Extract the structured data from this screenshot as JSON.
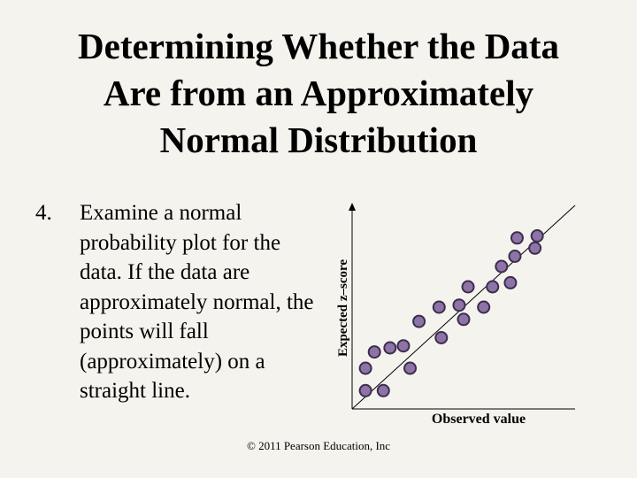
{
  "slide": {
    "title_lines": [
      "Determining Whether the Data",
      "Are from an Approximately",
      "Normal Distribution"
    ],
    "item_number": "4.",
    "item_text": "Examine a normal probability plot for the data. If the data are approximately normal, the points will fall (approximately) on a straight line.",
    "footer": "© 2011 Pearson Education, Inc"
  },
  "colors": {
    "background": "#f5f3ee",
    "point_fill": "#8e73a6",
    "point_stroke": "#3b2d4e"
  },
  "chart_data": {
    "type": "scatter",
    "title": "",
    "xlabel": "Observed value",
    "ylabel": "Expected z–score",
    "xlim": [
      0,
      100
    ],
    "ylim": [
      0,
      100
    ],
    "grid": false,
    "reference_line": {
      "from": [
        0,
        0
      ],
      "to": [
        100,
        100
      ]
    },
    "points": [
      {
        "x": 6,
        "y": 9
      },
      {
        "x": 14,
        "y": 9
      },
      {
        "x": 6,
        "y": 20
      },
      {
        "x": 10,
        "y": 28
      },
      {
        "x": 17,
        "y": 30
      },
      {
        "x": 26,
        "y": 20
      },
      {
        "x": 23,
        "y": 31
      },
      {
        "x": 30,
        "y": 43
      },
      {
        "x": 39,
        "y": 50
      },
      {
        "x": 40,
        "y": 35
      },
      {
        "x": 48,
        "y": 51
      },
      {
        "x": 50,
        "y": 44
      },
      {
        "x": 52,
        "y": 60
      },
      {
        "x": 59,
        "y": 50
      },
      {
        "x": 63,
        "y": 60
      },
      {
        "x": 67,
        "y": 70
      },
      {
        "x": 71,
        "y": 62
      },
      {
        "x": 73,
        "y": 75
      },
      {
        "x": 74,
        "y": 84
      },
      {
        "x": 82,
        "y": 79
      },
      {
        "x": 83,
        "y": 85
      }
    ]
  }
}
